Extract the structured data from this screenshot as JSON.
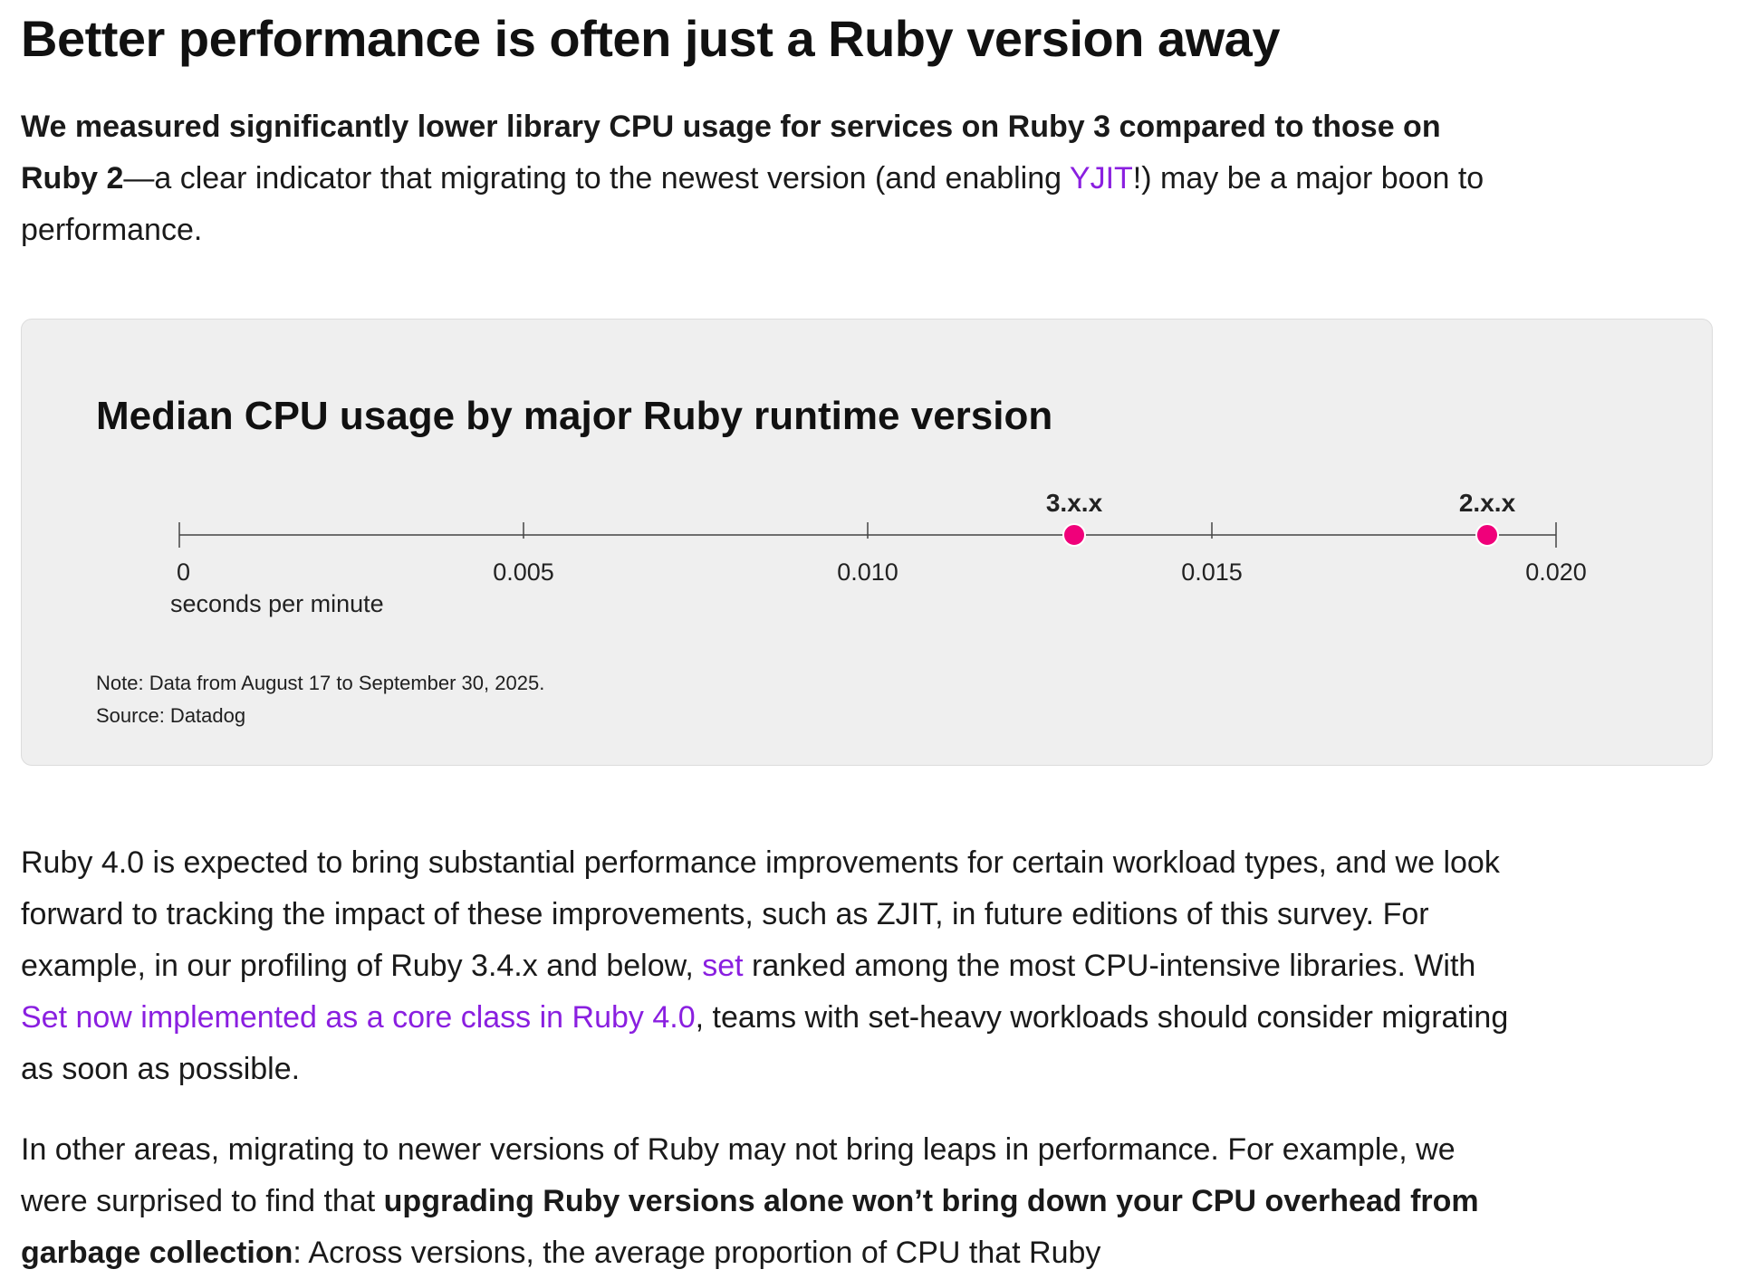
{
  "article": {
    "headline": "Better performance is often just a Ruby version away",
    "intro": {
      "bold": "We measured significantly lower library CPU usage for services on Ruby 3 compared to those on Ruby 2",
      "text_before_link": "—a clear indicator that migrating to the newest version (and enabling ",
      "link": "YJIT",
      "text_after_link": "!) may be a major boon to performance."
    },
    "paragraph1": {
      "text1": "Ruby 4.0 is expected to bring substantial performance improvements for certain workload types, and we look forward to tracking the impact of these improvements, such as ZJIT, in future editions of this survey. For example, in our profiling of Ruby 3.4.x and below, ",
      "link1": "set",
      "text2": " ranked among the most CPU-intensive libraries. With ",
      "link2": "Set now implemented as a core class in Ruby 4.0",
      "text3": ", teams with set-heavy workloads should consider migrating as soon as possible."
    },
    "paragraph2": {
      "text1": "In other areas, migrating to newer versions of Ruby may not bring leaps in performance. For example, we were surprised to find that ",
      "bold": "upgrading Ruby versions alone won’t bring down your CPU overhead from garbage collection",
      "text2": ": Across versions, the average proportion of CPU that Ruby"
    }
  },
  "colors": {
    "link": "#8a1fe0",
    "point": "#f0007a",
    "card_bg": "#efefef"
  },
  "chart_data": {
    "type": "scatter",
    "title": "Median CPU usage by major Ruby runtime version",
    "xlabel": "seconds per minute",
    "xlim": [
      0,
      0.02
    ],
    "xticks": [
      0,
      0.005,
      0.01,
      0.015,
      0.02
    ],
    "xtick_labels": [
      "0",
      "0.005",
      "0.010",
      "0.015",
      "0.020"
    ],
    "points": [
      {
        "label": "3.x.x",
        "value": 0.013
      },
      {
        "label": "2.x.x",
        "value": 0.019
      }
    ],
    "grid": false,
    "notes": [
      "Note: Data from August 17 to September 30, 2025.",
      "Source: Datadog"
    ]
  }
}
